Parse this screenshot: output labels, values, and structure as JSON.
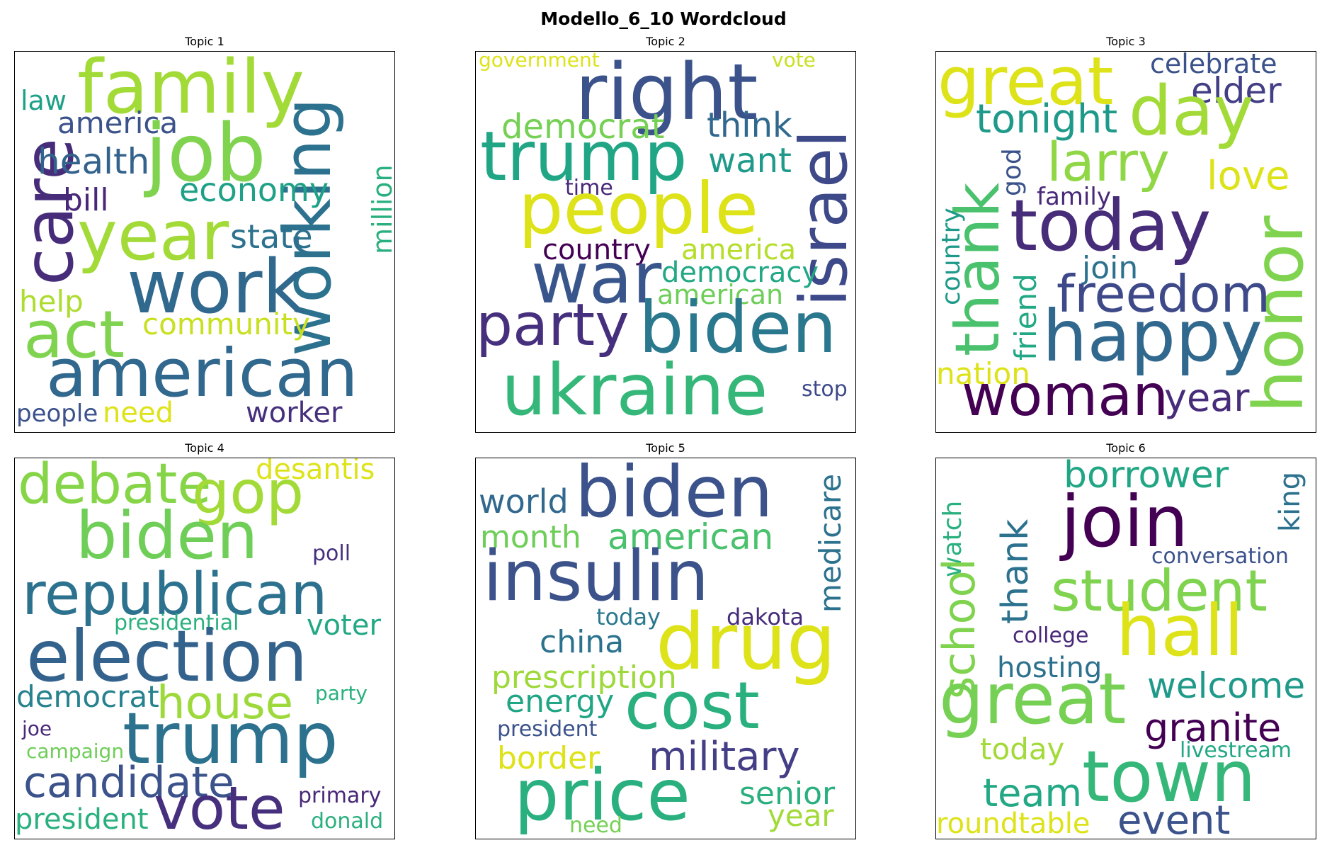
{
  "title": "Modello_6_10 Wordcloud",
  "palette": {
    "purple": "#472c7a",
    "violet": "#46307e",
    "indigo": "#3b518b",
    "blue": "#31688e",
    "teal": "#26828e",
    "green": "#1fa187",
    "mint": "#35b779",
    "lime": "#6ece58",
    "yellowgreen": "#b5de2b",
    "yellow": "#dde318"
  },
  "topics": [
    {
      "title": "Topic 1",
      "words": [
        {
          "text": "family",
          "color": "#a2da37"
        },
        {
          "text": "job",
          "color": "#7fd34e"
        },
        {
          "text": "care",
          "color": "#472c7a"
        },
        {
          "text": "working",
          "color": "#2c728e"
        },
        {
          "text": "year",
          "color": "#a2da37"
        },
        {
          "text": "work",
          "color": "#31688e"
        },
        {
          "text": "act",
          "color": "#7fd34e"
        },
        {
          "text": "american",
          "color": "#31688e"
        },
        {
          "text": "law",
          "color": "#1fa187"
        },
        {
          "text": "america",
          "color": "#3b528b"
        },
        {
          "text": "health",
          "color": "#33638d"
        },
        {
          "text": "bill",
          "color": "#482878"
        },
        {
          "text": "economy",
          "color": "#1fa187"
        },
        {
          "text": "million",
          "color": "#2ab07f"
        },
        {
          "text": "state",
          "color": "#2c728e"
        },
        {
          "text": "help",
          "color": "#addc30"
        },
        {
          "text": "community",
          "color": "#c8e020"
        },
        {
          "text": "people",
          "color": "#3b528b"
        },
        {
          "text": "need",
          "color": "#dde318"
        },
        {
          "text": "worker",
          "color": "#46307e"
        }
      ]
    },
    {
      "title": "Topic 2",
      "words": [
        {
          "text": "government",
          "color": "#dde318"
        },
        {
          "text": "vote",
          "color": "#c8e020"
        },
        {
          "text": "right",
          "color": "#3b528b"
        },
        {
          "text": "israel",
          "color": "#3e4989"
        },
        {
          "text": "democrat",
          "color": "#75d054"
        },
        {
          "text": "think",
          "color": "#31688e"
        },
        {
          "text": "trump",
          "color": "#21a685"
        },
        {
          "text": "want",
          "color": "#1f9a8a"
        },
        {
          "text": "time",
          "color": "#482878"
        },
        {
          "text": "people",
          "color": "#dde318"
        },
        {
          "text": "country",
          "color": "#440154"
        },
        {
          "text": "america",
          "color": "#b5de2b"
        },
        {
          "text": "democracy",
          "color": "#22a884"
        },
        {
          "text": "war",
          "color": "#39568c"
        },
        {
          "text": "american",
          "color": "#6ece58"
        },
        {
          "text": "party",
          "color": "#46307e"
        },
        {
          "text": "biden",
          "color": "#2a788e"
        },
        {
          "text": "ukraine",
          "color": "#35b779"
        },
        {
          "text": "stop",
          "color": "#3e4989"
        }
      ]
    },
    {
      "title": "Topic 3",
      "words": [
        {
          "text": "great",
          "color": "#dde318"
        },
        {
          "text": "celebrate",
          "color": "#3b528b"
        },
        {
          "text": "elder",
          "color": "#433e85"
        },
        {
          "text": "day",
          "color": "#a2da37"
        },
        {
          "text": "tonight",
          "color": "#1f9a8a"
        },
        {
          "text": "larry",
          "color": "#8fd744"
        },
        {
          "text": "love",
          "color": "#dde318"
        },
        {
          "text": "god",
          "color": "#3b528b"
        },
        {
          "text": "thank",
          "color": "#4ac16d"
        },
        {
          "text": "family",
          "color": "#482878"
        },
        {
          "text": "today",
          "color": "#472c7a"
        },
        {
          "text": "honor",
          "color": "#7fd34e"
        },
        {
          "text": "country",
          "color": "#1f9a8a"
        },
        {
          "text": "join",
          "color": "#2c728e"
        },
        {
          "text": "friend",
          "color": "#22a884"
        },
        {
          "text": "freedom",
          "color": "#3e4989"
        },
        {
          "text": "happy",
          "color": "#31688e"
        },
        {
          "text": "nation",
          "color": "#dde318"
        },
        {
          "text": "woman",
          "color": "#440154"
        },
        {
          "text": "year",
          "color": "#472c7a"
        }
      ]
    },
    {
      "title": "Topic 4",
      "words": [
        {
          "text": "debate",
          "color": "#86d549"
        },
        {
          "text": "gop",
          "color": "#a2da37"
        },
        {
          "text": "desantis",
          "color": "#dde318"
        },
        {
          "text": "biden",
          "color": "#6ece58"
        },
        {
          "text": "poll",
          "color": "#46307e"
        },
        {
          "text": "republican",
          "color": "#2c728e"
        },
        {
          "text": "presidential",
          "color": "#2ab07f"
        },
        {
          "text": "voter",
          "color": "#22a884"
        },
        {
          "text": "election",
          "color": "#33638d"
        },
        {
          "text": "democrat",
          "color": "#26828e"
        },
        {
          "text": "house",
          "color": "#9dd93b"
        },
        {
          "text": "party",
          "color": "#2ab07f"
        },
        {
          "text": "joe",
          "color": "#482878"
        },
        {
          "text": "trump",
          "color": "#2c728e"
        },
        {
          "text": "campaign",
          "color": "#6ece58"
        },
        {
          "text": "candidate",
          "color": "#3b528b"
        },
        {
          "text": "vote",
          "color": "#46307e"
        },
        {
          "text": "primary",
          "color": "#482878"
        },
        {
          "text": "president",
          "color": "#2ab07f"
        },
        {
          "text": "donald",
          "color": "#2ab07f"
        }
      ]
    },
    {
      "title": "Topic 5",
      "words": [
        {
          "text": "biden",
          "color": "#3b528b"
        },
        {
          "text": "medicare",
          "color": "#2c728e"
        },
        {
          "text": "world",
          "color": "#31688e"
        },
        {
          "text": "month",
          "color": "#6ece58"
        },
        {
          "text": "american",
          "color": "#4ac16d"
        },
        {
          "text": "insulin",
          "color": "#3b528b"
        },
        {
          "text": "today",
          "color": "#2a788e"
        },
        {
          "text": "dakota",
          "color": "#472c7a"
        },
        {
          "text": "china",
          "color": "#2c728e"
        },
        {
          "text": "drug",
          "color": "#dde318"
        },
        {
          "text": "prescription",
          "color": "#9dd93b"
        },
        {
          "text": "energy",
          "color": "#21a685"
        },
        {
          "text": "president",
          "color": "#3b528b"
        },
        {
          "text": "cost",
          "color": "#2ab07f"
        },
        {
          "text": "border",
          "color": "#dde318"
        },
        {
          "text": "military",
          "color": "#433e85"
        },
        {
          "text": "price",
          "color": "#2ab07f"
        },
        {
          "text": "senior",
          "color": "#2ab07f"
        },
        {
          "text": "year",
          "color": "#a2da37"
        },
        {
          "text": "need",
          "color": "#75d054"
        }
      ]
    },
    {
      "title": "Topic 6",
      "words": [
        {
          "text": "borrower",
          "color": "#21a685"
        },
        {
          "text": "king",
          "color": "#2c728e"
        },
        {
          "text": "join",
          "color": "#440154"
        },
        {
          "text": "watch",
          "color": "#2ab07f"
        },
        {
          "text": "school",
          "color": "#7fd34e"
        },
        {
          "text": "thank",
          "color": "#2c728e"
        },
        {
          "text": "conversation",
          "color": "#3b528b"
        },
        {
          "text": "student",
          "color": "#7fd34e"
        },
        {
          "text": "college",
          "color": "#482878"
        },
        {
          "text": "hall",
          "color": "#dde318"
        },
        {
          "text": "hosting",
          "color": "#2c728e"
        },
        {
          "text": "welcome",
          "color": "#1f9a8a"
        },
        {
          "text": "great",
          "color": "#75d054"
        },
        {
          "text": "granite",
          "color": "#440154"
        },
        {
          "text": "today",
          "color": "#a2da37"
        },
        {
          "text": "livestream",
          "color": "#22a884"
        },
        {
          "text": "town",
          "color": "#35b779"
        },
        {
          "text": "team",
          "color": "#22a884"
        },
        {
          "text": "roundtable",
          "color": "#dde318"
        },
        {
          "text": "event",
          "color": "#3b528b"
        }
      ]
    }
  ]
}
